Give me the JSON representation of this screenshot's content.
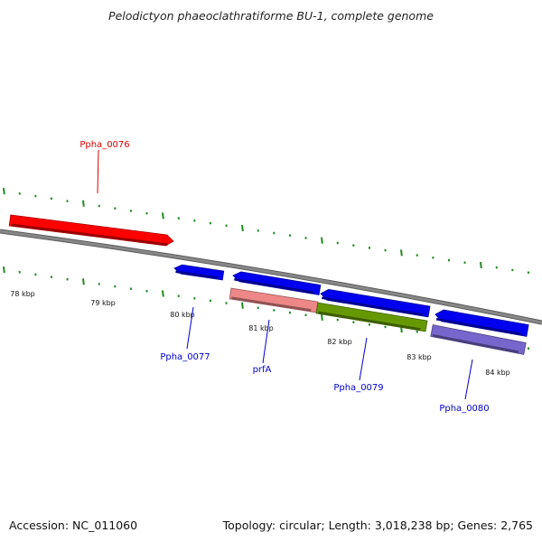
{
  "title": "Pelodictyon phaeoclathratiforme BU-1, complete genome",
  "footer": {
    "accession": "Accession: NC_011060",
    "summary": "Topology: circular; Length: 3,018,238 bp; Genes: 2,765"
  },
  "axis": {
    "kbp_labels": [
      "78 kbp",
      "79 kbp",
      "80 kbp",
      "81 kbp",
      "82 kbp",
      "83 kbp",
      "84 kbp"
    ]
  },
  "genes": [
    {
      "label": "Ppha_0076",
      "color": "#ff0000",
      "label_color": "#e00000",
      "strand": "+",
      "labeled": true
    },
    {
      "label": "Ppha_0077",
      "color": "#0000ee",
      "label_color": "#0000cc",
      "strand": "-",
      "labeled": true
    },
    {
      "label": "",
      "color": "#0000ee",
      "strand": "-",
      "labeled": false
    },
    {
      "label": "prfA",
      "color": "#ee8888",
      "label_color": "#0000cc",
      "strand": "-",
      "labeled": true
    },
    {
      "label": "",
      "color": "#0000ee",
      "strand": "-",
      "labeled": false
    },
    {
      "label": "Ppha_0079",
      "color": "#669900",
      "label_color": "#0000cc",
      "strand": "-",
      "labeled": true
    },
    {
      "label": "",
      "color": "#0000ee",
      "strand": "-",
      "labeled": false
    },
    {
      "label": "Ppha_0080",
      "color": "#7766cc",
      "label_color": "#0000cc",
      "strand": "-",
      "labeled": true
    }
  ],
  "colors": {
    "backbone": "#888888",
    "ticks": "#228b22"
  }
}
